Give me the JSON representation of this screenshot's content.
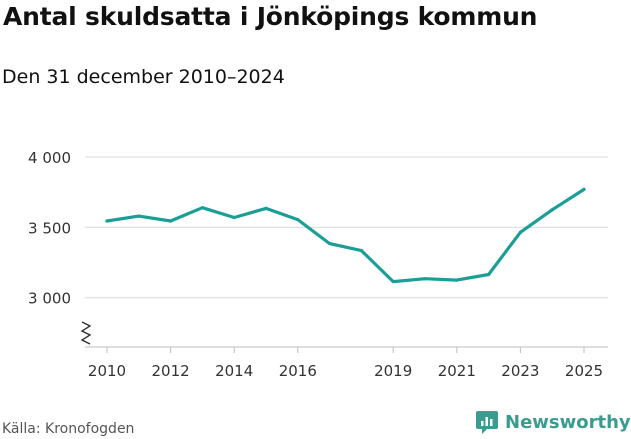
{
  "title": "Antal skuldsatta i Jönköpings kommun",
  "subtitle": "Den 31 december 2010–2024",
  "source": "Källa: Kronofogden",
  "brand": {
    "name": "Newsworthy",
    "icon": "newsworthy-logo-icon",
    "color": "#3a9b8f"
  },
  "chart_data": {
    "type": "line",
    "title": "Antal skuldsatta i Jönköpings kommun",
    "subtitle": "Den 31 december 2010–2024",
    "xlabel": "",
    "ylabel": "",
    "line_color": "#1a9e96",
    "axis_break": true,
    "ylim": [
      2650,
      4000
    ],
    "xlim": [
      2010,
      2025
    ],
    "y_ticks": [
      {
        "value": 3000,
        "label": "3 000"
      },
      {
        "value": 3500,
        "label": "3 500"
      },
      {
        "value": 4000,
        "label": "4 000"
      }
    ],
    "x_ticks": [
      {
        "value": 2010,
        "label": "2010"
      },
      {
        "value": 2012,
        "label": "2012"
      },
      {
        "value": 2014,
        "label": "2014"
      },
      {
        "value": 2016,
        "label": "2016"
      },
      {
        "value": 2019,
        "label": "2019"
      },
      {
        "value": 2021,
        "label": "2021"
      },
      {
        "value": 2023,
        "label": "2023"
      },
      {
        "value": 2025,
        "label": "2025"
      }
    ],
    "x": [
      2010,
      2011,
      2012,
      2013,
      2014,
      2015,
      2016,
      2017,
      2018,
      2019,
      2020,
      2021,
      2022,
      2023,
      2024,
      2025
    ],
    "series": [
      {
        "name": "Antal skuldsatta",
        "values": [
          3545,
          3580,
          3545,
          3640,
          3570,
          3635,
          3555,
          3385,
          3335,
          3115,
          3135,
          3125,
          3165,
          3465,
          3625,
          3770
        ]
      }
    ]
  }
}
